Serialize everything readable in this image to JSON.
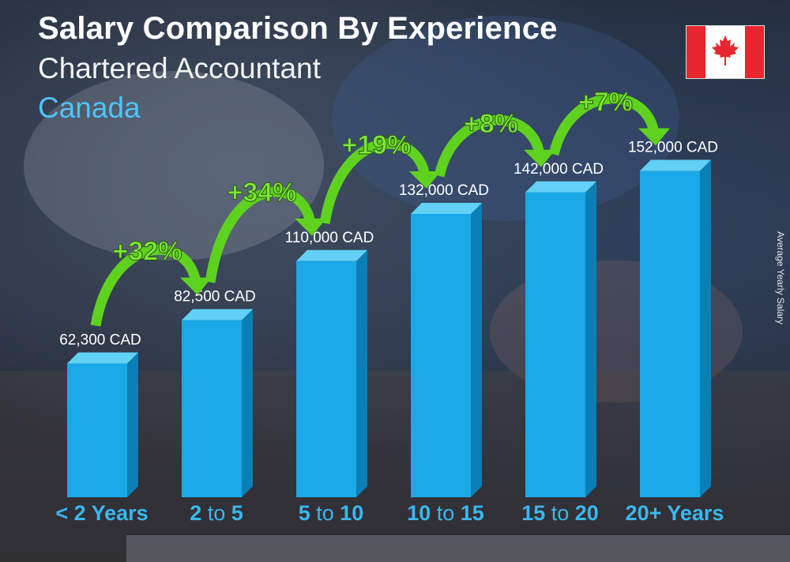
{
  "header": {
    "title": "Salary Comparison By Experience",
    "subtitle": "Chartered Accountant",
    "country": "Canada"
  },
  "flag_icon": "canada-flag-icon",
  "colors": {
    "bar_front": "#1aa8e6",
    "bar_side": "#0b7fb5",
    "bar_top": "#63d0f5",
    "arrow_green": "#5ed21f",
    "category_blue": "#39b8ee",
    "country_blue": "#4fc3f7"
  },
  "chart_data": {
    "type": "bar",
    "title": "Salary Comparison By Experience",
    "ylabel": "Average Yearly Salary",
    "xlabel": "",
    "ylim": [
      0,
      160000
    ],
    "categories": [
      "< 2 Years",
      "2 to 5",
      "5 to 10",
      "10 to 15",
      "15 to 20",
      "20+ Years"
    ],
    "category_parts": [
      [
        "< 2 Years"
      ],
      [
        "2",
        " to ",
        "5"
      ],
      [
        "5",
        " to ",
        "10"
      ],
      [
        "10",
        " to ",
        "15"
      ],
      [
        "15",
        " to ",
        "20"
      ],
      [
        "20+ Years"
      ]
    ],
    "values": [
      62300,
      82500,
      110000,
      132000,
      142000,
      152000
    ],
    "value_labels": [
      "62,300 CAD",
      "82,500 CAD",
      "110,000 CAD",
      "132,000 CAD",
      "142,000 CAD",
      "152,000 CAD"
    ],
    "annotations": [
      "+32%",
      "+34%",
      "+19%",
      "+8%",
      "+7%"
    ]
  }
}
